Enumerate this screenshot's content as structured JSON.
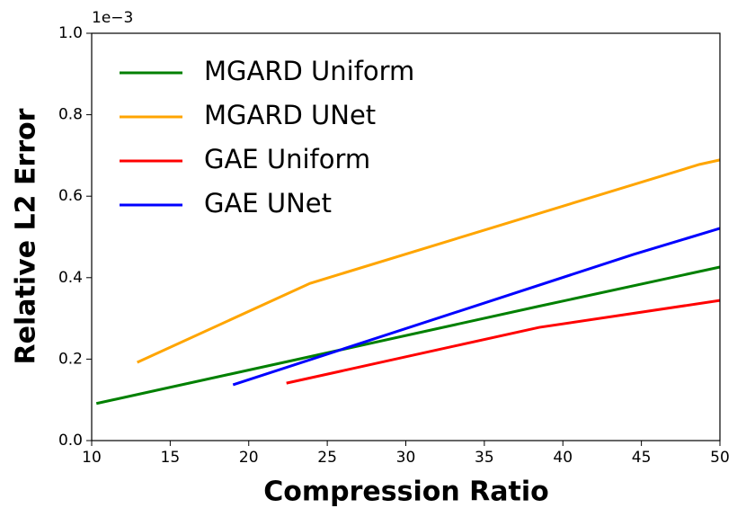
{
  "chart_data": {
    "type": "line",
    "x_label": "Compression Ratio",
    "y_label": "Relative L2 Error",
    "y_offset_label": "1e−3",
    "xlim": [
      10,
      50
    ],
    "xticks": [
      10,
      15,
      20,
      25,
      30,
      35,
      40,
      45,
      50
    ],
    "ylim": [
      0,
      1
    ],
    "yticks": [
      {
        "value": 0,
        "label": "0.0"
      },
      0.2,
      0.4,
      0.6,
      0.8,
      {
        "value": 1,
        "label": "1.0"
      }
    ],
    "legend": "upper left",
    "series": [
      {
        "name": "MGARD Uniform",
        "color": "#008000",
        "x": [
          10.3,
          24,
          38.5,
          50
        ],
        "values": [
          0.091,
          0.207,
          0.33,
          0.426
        ]
      },
      {
        "name": "MGARD UNet",
        "color": "#ffa500",
        "x": [
          12.9,
          23.9,
          48.7,
          50
        ],
        "values": [
          0.192,
          0.386,
          0.678,
          0.689
        ]
      },
      {
        "name": "GAE Uniform",
        "color": "#ff0000",
        "x": [
          22.4,
          38.5,
          50
        ],
        "values": [
          0.141,
          0.278,
          0.344
        ]
      },
      {
        "name": "GAE UNet",
        "color": "#0000ff",
        "x": [
          19.0,
          44.5,
          50
        ],
        "values": [
          0.137,
          0.457,
          0.521
        ]
      }
    ]
  }
}
